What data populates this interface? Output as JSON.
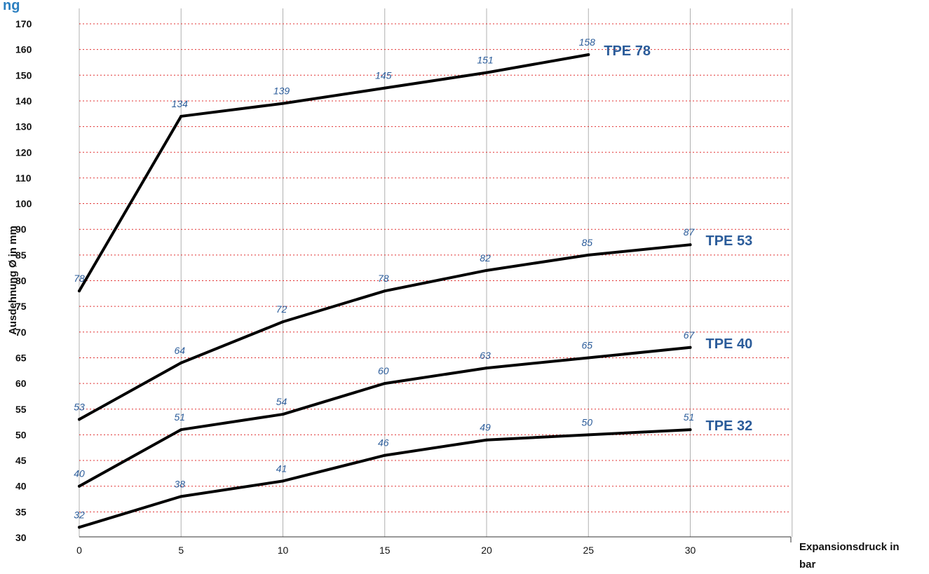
{
  "page_title": "ng",
  "chart_data": {
    "type": "line",
    "title": "",
    "xlabel_line1": "Expansionsdruck in",
    "xlabel_line2": "bar",
    "ylabel": "Ausdehnung Ø in mm",
    "x_ticks": [
      0,
      5,
      10,
      15,
      20,
      25,
      30
    ],
    "y_ticks": [
      30,
      35,
      40,
      45,
      50,
      55,
      60,
      65,
      70,
      75,
      80,
      85,
      90,
      100,
      110,
      120,
      130,
      140,
      150,
      160,
      170
    ],
    "grid": true,
    "colors": {
      "line": "#000000",
      "label": "#2b5c9a",
      "gridline_h": "#e03030",
      "gridline_v": "#b0b0b0"
    },
    "series": [
      {
        "name": "TPE 78",
        "x": [
          0,
          5,
          10,
          15,
          20,
          25
        ],
        "values": [
          78,
          134,
          139,
          145,
          151,
          158
        ]
      },
      {
        "name": "TPE 53",
        "x": [
          0,
          5,
          10,
          15,
          20,
          25,
          30
        ],
        "values": [
          53,
          64,
          72,
          78,
          82,
          85,
          87
        ]
      },
      {
        "name": "TPE 40",
        "x": [
          0,
          5,
          10,
          15,
          20,
          25,
          30
        ],
        "values": [
          40,
          51,
          54,
          60,
          63,
          65,
          67
        ]
      },
      {
        "name": "TPE 32",
        "x": [
          0,
          5,
          10,
          15,
          20,
          25,
          30
        ],
        "values": [
          32,
          38,
          41,
          46,
          49,
          50,
          51
        ]
      }
    ]
  }
}
